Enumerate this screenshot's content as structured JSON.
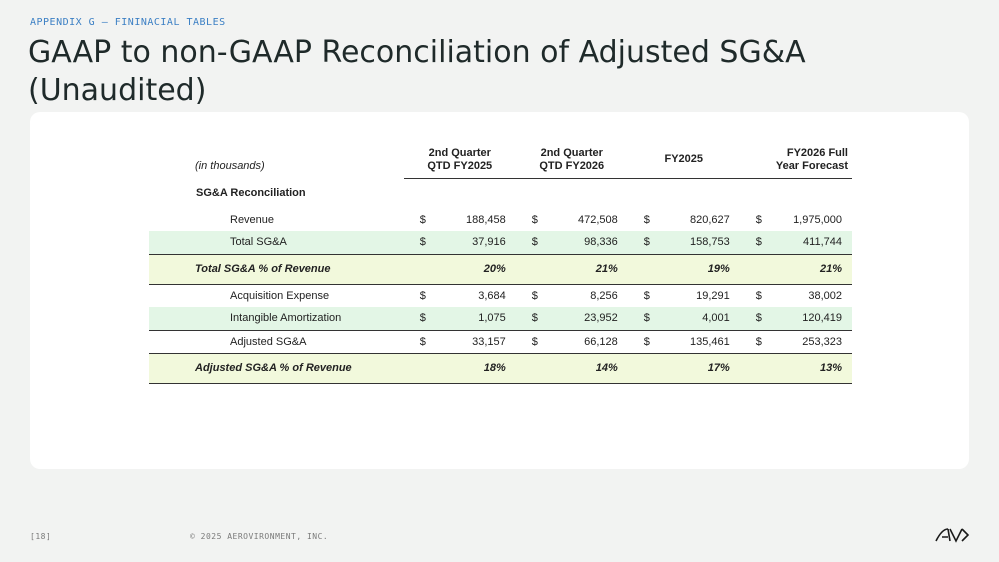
{
  "header": {
    "eyebrow": "APPENDIX G – FININACIAL TABLES",
    "title": "GAAP to non-GAAP Reconciliation of Adjusted SG&A (Unaudited)"
  },
  "table": {
    "units": "(in thousands)",
    "columns": [
      "2nd Quarter\nQTD FY2025",
      "2nd Quarter\nQTD FY2026",
      "FY2025",
      "FY2026 Full\nYear Forecast"
    ],
    "section": "SG&A Reconciliation",
    "currency": "$",
    "rows": [
      {
        "label": "Revenue",
        "values": [
          "188,458",
          "472,508",
          "820,627",
          "1,975,000"
        ]
      },
      {
        "label": "Total SG&A",
        "values": [
          "37,916",
          "98,336",
          "158,753",
          "411,744"
        ]
      },
      {
        "label": "Total SG&A % of Revenue",
        "values": [
          "20%",
          "21%",
          "19%",
          "21%"
        ]
      },
      {
        "label": "Acquisition Expense",
        "values": [
          "3,684",
          "8,256",
          "19,291",
          "38,002"
        ]
      },
      {
        "label": "Intangible Amortization",
        "values": [
          "1,075",
          "23,952",
          "4,001",
          "120,419"
        ]
      },
      {
        "label": "Adjusted SG&A",
        "values": [
          "33,157",
          "66,128",
          "135,461",
          "253,323"
        ]
      },
      {
        "label": "Adjusted SG&A % of Revenue",
        "values": [
          "18%",
          "14%",
          "17%",
          "13%"
        ]
      }
    ]
  },
  "footer": {
    "page": "[18]",
    "copyright": "© 2025 AEROVIRONMENT, INC."
  },
  "logo": {
    "name": "av-logo-icon",
    "color": "#1a1a1a"
  }
}
